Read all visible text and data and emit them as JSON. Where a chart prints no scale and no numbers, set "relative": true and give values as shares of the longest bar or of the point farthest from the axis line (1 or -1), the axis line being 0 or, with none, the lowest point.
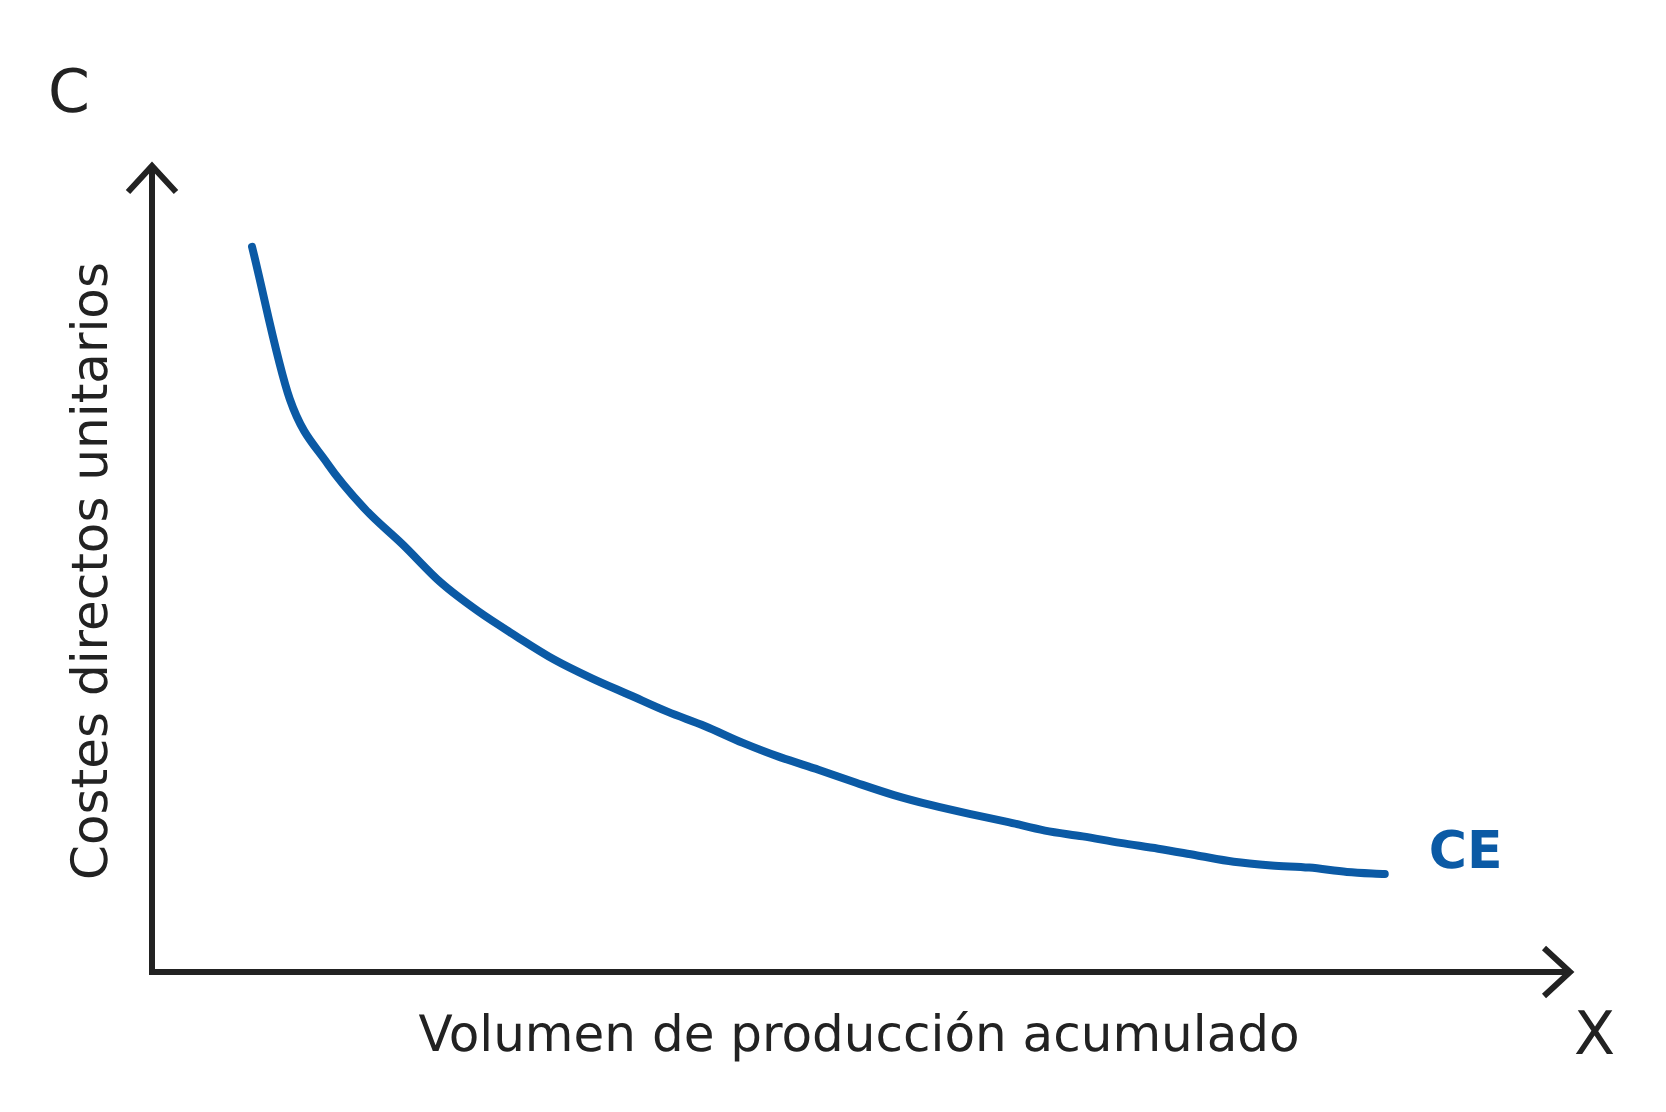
{
  "chart_data": {
    "type": "line",
    "relative": true,
    "xlabel": "Volumen de producción acumulado",
    "ylabel": "Costes directos unitarios",
    "annotations": [
      "C",
      "X"
    ],
    "categories": [
      null,
      null,
      null,
      null,
      null,
      null,
      null,
      null,
      null,
      null,
      null,
      null,
      null,
      null,
      null,
      null,
      null,
      null,
      null,
      null,
      null,
      null,
      null,
      null,
      null,
      null,
      null,
      null,
      null,
      null,
      null
    ],
    "series": [
      {
        "name": "CE",
        "color": "#0b5aa5",
        "values": [
          1,
          0.79,
          0.701,
          0.638,
          0.589,
          0.537,
          0.497,
          0.463,
          0.431,
          0.405,
          0.382,
          0.359,
          0.339,
          0.316,
          0.296,
          0.279,
          0.261,
          0.244,
          0.23,
          0.218,
          0.207,
          0.195,
          0.187,
          0.178,
          0.17,
          0.161,
          0.152,
          0.147,
          0.144,
          0.138,
          0.135
        ]
      }
    ],
    "legend": false,
    "marker": "none",
    "line_style": "solid"
  }
}
